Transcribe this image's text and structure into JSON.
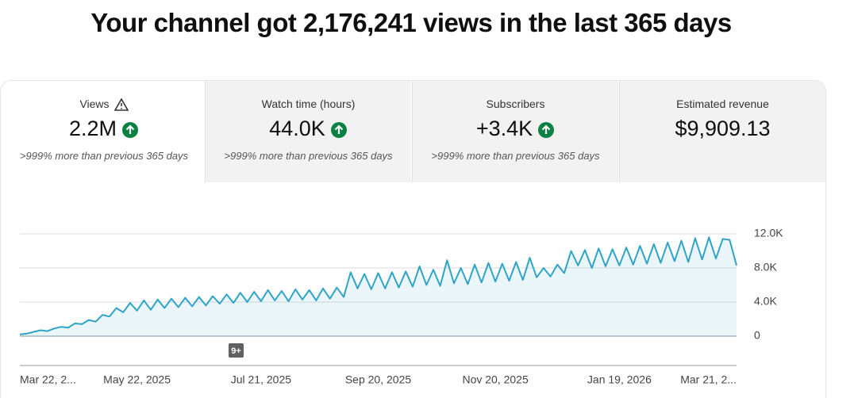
{
  "title": "Your channel got 2,176,241 views in the last 365 days",
  "cards": [
    {
      "label": "Views",
      "value": "2.2M",
      "change": ">999% more than previous 365 days"
    },
    {
      "label": "Watch time (hours)",
      "value": "44.0K",
      "change": ">999% more than previous 365 days"
    },
    {
      "label": "Subscribers",
      "value": "+3.4K",
      "change": ">999% more than previous 365 days"
    },
    {
      "label": "Estimated revenue",
      "value": "$9,909.13"
    }
  ],
  "badge": "9+",
  "chart_data": {
    "type": "area",
    "categories": [
      "Mar 22, 2...",
      null,
      null,
      null,
      null,
      null,
      null,
      null,
      null,
      null,
      null,
      null,
      null,
      null,
      null,
      null,
      null,
      "May 22, 2025",
      null,
      null,
      null,
      null,
      null,
      null,
      null,
      null,
      null,
      null,
      null,
      null,
      null,
      null,
      null,
      null,
      null,
      "Jul 21, 2025",
      null,
      null,
      null,
      null,
      null,
      null,
      null,
      null,
      null,
      null,
      null,
      null,
      null,
      null,
      null,
      null,
      "Sep 20, 2025",
      null,
      null,
      null,
      null,
      null,
      null,
      null,
      null,
      null,
      null,
      null,
      null,
      null,
      null,
      null,
      null,
      "Nov 20, 2025",
      null,
      null,
      null,
      null,
      null,
      null,
      null,
      null,
      null,
      null,
      null,
      null,
      null,
      null,
      null,
      null,
      null,
      "Jan 19, 2026",
      null,
      null,
      null,
      null,
      null,
      null,
      null,
      null,
      null,
      null,
      null,
      null,
      null,
      null,
      null,
      null,
      "Mar 21, 2..."
    ],
    "series": [
      {
        "name": "Views",
        "color": "#2fa4c8",
        "values": [
          200,
          300,
          500,
          700,
          600,
          900,
          1100,
          1000,
          1500,
          1400,
          1900,
          1700,
          2500,
          2300,
          3300,
          2800,
          3900,
          3000,
          4200,
          3100,
          4300,
          3300,
          4400,
          3400,
          4500,
          3500,
          4600,
          3600,
          4700,
          3800,
          4900,
          3900,
          5100,
          4000,
          5200,
          4100,
          5400,
          4200,
          5300,
          4100,
          5500,
          4300,
          5400,
          4200,
          5600,
          4400,
          5700,
          4600,
          7500,
          5600,
          7300,
          5500,
          7400,
          5600,
          7500,
          5700,
          7600,
          5800,
          8200,
          6000,
          7800,
          5900,
          8900,
          6200,
          8000,
          6100,
          8400,
          6300,
          8600,
          6400,
          8500,
          6500,
          8700,
          6600,
          9200,
          6900,
          8000,
          7000,
          8400,
          7400,
          10000,
          8300,
          10100,
          8000,
          10300,
          8200,
          10200,
          8300,
          10400,
          8400,
          10600,
          8500,
          10800,
          8600,
          11000,
          8800,
          11200,
          8700,
          11500,
          9000,
          11600,
          9100,
          11400,
          11300,
          8300
        ]
      }
    ],
    "ylim": [
      0,
      12000
    ],
    "yticks": [
      0,
      {
        "value": 4000,
        "label": "4.0K"
      },
      {
        "value": 8000,
        "label": "8.0K"
      },
      {
        "value": 12000,
        "label": "12.0K"
      }
    ],
    "grid": true
  }
}
